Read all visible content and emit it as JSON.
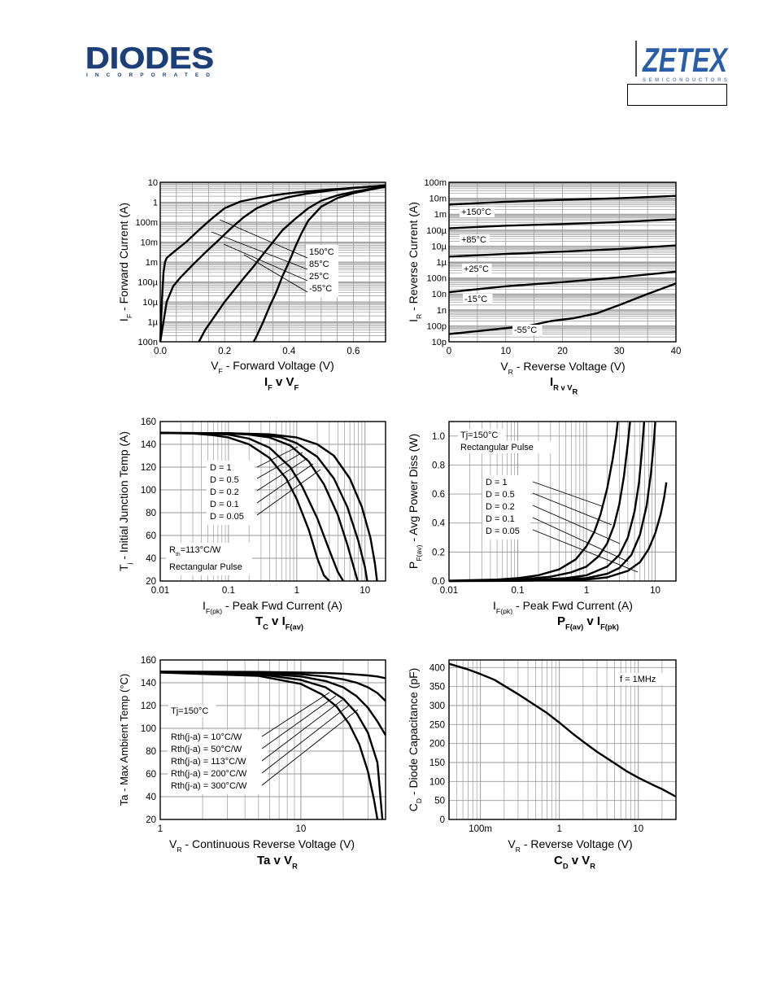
{
  "header": {
    "diodes_logo_text": "DIODES",
    "diodes_logo_sub": "INCORPORATED",
    "zetex_logo_text": "ZETEX",
    "zetex_logo_sub": "SEMICONDUCTORS"
  },
  "colors": {
    "ink": "#000000",
    "grid": "#9a9a9a",
    "background": "#ffffff"
  },
  "chart_data": [
    {
      "id": "if_vf",
      "type": "line",
      "x_scale": "linear",
      "y_scale": "log",
      "xlim": [
        0,
        0.7
      ],
      "ylim": [
        1e-07,
        10
      ],
      "x_ticks": [
        0,
        0.2,
        0.4,
        0.6
      ],
      "x_tick_labels": [
        "0.0",
        "0.2",
        "0.4",
        "0.6"
      ],
      "y_tick_labels": [
        "100n",
        "1µ",
        "10µ",
        "100µ",
        "1m",
        "10m",
        "100m",
        "1",
        "10"
      ],
      "xlabel_main": "V",
      "xlabel_sub": "F",
      "xlabel_rest": " - Forward Voltage (V)",
      "ylabel_main": "I",
      "ylabel_sub": "F",
      "ylabel_rest": " - Forward Current (A)",
      "caption": {
        "a": "I",
        "a_sub": "F",
        "b": " v V",
        "b_sub": "F"
      },
      "legend": [
        "150°C",
        "85°C",
        "25°C",
        "-55°C"
      ],
      "series": [
        {
          "name": "150°C",
          "x": [
            0.0,
            0.005,
            0.01,
            0.015,
            0.02,
            0.04,
            0.08,
            0.12,
            0.16,
            0.2,
            0.25,
            0.3,
            0.35,
            0.4,
            0.45,
            0.5,
            0.55,
            0.6,
            0.65,
            0.7
          ],
          "y": [
            1e-07,
            1e-05,
            0.0003,
            0.001,
            0.0016,
            0.003,
            0.01,
            0.04,
            0.15,
            0.5,
            1.1,
            1.6,
            2.2,
            2.8,
            3.4,
            4.0,
            4.6,
            5.3,
            6.0,
            7.0
          ]
        },
        {
          "name": "85°C",
          "x": [
            0.0,
            0.01,
            0.02,
            0.04,
            0.06,
            0.1,
            0.14,
            0.18,
            0.22,
            0.26,
            0.3,
            0.35,
            0.4,
            0.45,
            0.5,
            0.55,
            0.6,
            0.65,
            0.7
          ],
          "y": [
            1e-07,
            1e-06,
            1e-05,
            6e-05,
            0.00015,
            0.0007,
            0.003,
            0.012,
            0.05,
            0.18,
            0.5,
            1.1,
            1.8,
            2.6,
            3.4,
            4.3,
            5.2,
            6.0,
            7.0
          ]
        },
        {
          "name": "25°C",
          "x": [
            0.12,
            0.14,
            0.17,
            0.2,
            0.23,
            0.26,
            0.29,
            0.32,
            0.35,
            0.38,
            0.42,
            0.46,
            0.5,
            0.55,
            0.6,
            0.65,
            0.7
          ],
          "y": [
            1e-07,
            4e-07,
            2e-06,
            1e-05,
            4e-05,
            0.00016,
            0.0006,
            0.0025,
            0.01,
            0.04,
            0.15,
            0.5,
            1.2,
            2.2,
            3.3,
            4.6,
            6.5
          ]
        },
        {
          "name": "-55°C",
          "x": [
            0.29,
            0.3,
            0.32,
            0.34,
            0.36,
            0.38,
            0.4,
            0.42,
            0.44,
            0.46,
            0.5,
            0.55,
            0.6,
            0.65,
            0.7
          ],
          "y": [
            1e-07,
            2e-07,
            1e-06,
            6e-06,
            3e-05,
            0.0002,
            0.001,
            0.006,
            0.03,
            0.12,
            0.6,
            1.6,
            2.8,
            4.2,
            6.0
          ]
        }
      ]
    },
    {
      "id": "ir_vr",
      "type": "line",
      "x_scale": "linear",
      "y_scale": "log",
      "xlim": [
        0,
        40
      ],
      "ylim": [
        1e-11,
        0.1
      ],
      "x_ticks": [
        0,
        10,
        20,
        30,
        40
      ],
      "x_tick_labels": [
        "0",
        "10",
        "20",
        "30",
        "40"
      ],
      "y_tick_labels": [
        "10p",
        "100p",
        "1n",
        "10n",
        "100n",
        "1µ",
        "10µ",
        "100µ",
        "1m",
        "10m",
        "100m"
      ],
      "xlabel_main": "V",
      "xlabel_sub": "R",
      "xlabel_rest": " - Reverse Voltage (V)",
      "ylabel_main": "I",
      "ylabel_sub": "R",
      "ylabel_rest": " - Reverse Current (A)",
      "caption": {
        "a": "I",
        "a_sub": "R v V",
        "b": "",
        "b_sub": "R"
      },
      "series": [
        {
          "name": "+150°C",
          "x": [
            0,
            10,
            20,
            30,
            40
          ],
          "y": [
            0.004,
            0.006,
            0.008,
            0.01,
            0.014
          ]
        },
        {
          "name": "+85°C",
          "x": [
            0,
            10,
            20,
            30,
            40
          ],
          "y": [
            0.00013,
            0.00019,
            0.00024,
            0.00032,
            0.00048
          ]
        },
        {
          "name": "+25°C",
          "x": [
            0,
            10,
            20,
            30,
            40
          ],
          "y": [
            2.2e-06,
            3.2e-06,
            4.5e-06,
            6.5e-06,
            1.1e-05
          ]
        },
        {
          "name": "-15°C",
          "x": [
            0,
            10,
            20,
            30,
            40
          ],
          "y": [
            1.3e-08,
            3e-08,
            5.5e-08,
            1.1e-07,
            2.5e-07
          ]
        },
        {
          "name": "-55°C",
          "x": [
            0,
            7,
            14,
            18,
            22,
            26,
            30,
            35,
            40
          ],
          "y": [
            3e-11,
            5.5e-11,
            1e-10,
            2e-10,
            3e-10,
            6e-10,
            2e-09,
            1e-08,
            4.5e-08
          ]
        }
      ]
    },
    {
      "id": "tj_if",
      "type": "line",
      "x_scale": "log",
      "y_scale": "linear",
      "xlim": [
        0.01,
        20
      ],
      "ylim": [
        20,
        160
      ],
      "x_tick_labels": [
        "0.01",
        "0.1",
        "1",
        "10"
      ],
      "y_ticks": [
        20,
        40,
        60,
        80,
        100,
        120,
        140,
        160
      ],
      "xlabel_main": "I",
      "xlabel_sub": "F(pk)",
      "xlabel_rest": " - Peak Fwd Current (A)",
      "ylabel_main": "T",
      "ylabel_sub": "j",
      "ylabel_rest": " - Initial Junction Temp (A)",
      "caption": {
        "a": "T",
        "a_sub": "C",
        "b": " v I",
        "b_sub": "F(av)"
      },
      "legend": [
        "D = 1",
        "D = 0.5",
        "D = 0.2",
        "D = 0.1",
        "D = 0.05"
      ],
      "notes": [
        "R",
        "th",
        "=113°C/W",
        "Rectangular Pulse"
      ],
      "series": [
        {
          "name": "D = 1",
          "x": [
            0.01,
            0.03,
            0.06,
            0.1,
            0.2,
            0.4,
            0.7,
            1.0,
            1.5,
            2.0,
            2.5,
            3.0
          ],
          "y": [
            150,
            149.5,
            148,
            146,
            140,
            128,
            110,
            92,
            65,
            40,
            25,
            20
          ]
        },
        {
          "name": "D = 0.5",
          "x": [
            0.01,
            0.05,
            0.1,
            0.2,
            0.4,
            0.8,
            1.2,
            2.0,
            3.0,
            4.0,
            4.8
          ],
          "y": [
            150,
            149.5,
            148.5,
            145,
            137,
            120,
            103,
            75,
            47,
            28,
            20
          ]
        },
        {
          "name": "D = 0.2",
          "x": [
            0.01,
            0.1,
            0.2,
            0.4,
            0.8,
            1.5,
            2.5,
            4.0,
            5.5,
            7.0,
            7.8
          ],
          "y": [
            150,
            149.5,
            148.5,
            146,
            139,
            125,
            105,
            78,
            52,
            30,
            20
          ]
        },
        {
          "name": "D = 0.1",
          "x": [
            0.01,
            0.1,
            0.3,
            0.6,
            1.0,
            2.0,
            3.5,
            5.5,
            8.0,
            10.0,
            10.8
          ],
          "y": [
            150,
            149.8,
            148.5,
            146,
            141,
            129,
            110,
            85,
            55,
            32,
            20
          ]
        },
        {
          "name": "D = 0.05",
          "x": [
            0.01,
            0.1,
            0.4,
            1.0,
            2.0,
            3.5,
            6.0,
            9.0,
            12.0,
            14.0,
            15.0
          ],
          "y": [
            150,
            149.8,
            148.8,
            146,
            140,
            130,
            110,
            85,
            58,
            35,
            20
          ]
        }
      ]
    },
    {
      "id": "pf_if",
      "type": "line",
      "x_scale": "log",
      "y_scale": "linear",
      "xlim": [
        0.01,
        20
      ],
      "ylim": [
        0,
        1.1
      ],
      "x_tick_labels": [
        "0.01",
        "0.1",
        "1",
        "10"
      ],
      "y_ticks": [
        0,
        0.2,
        0.4,
        0.6,
        0.8,
        1.0
      ],
      "y_tick_labels": [
        "0.0",
        "0.2",
        "0.4",
        "0.6",
        "0.8",
        "1.0"
      ],
      "xlabel_main": "I",
      "xlabel_sub": "F(pk)",
      "xlabel_rest": " - Peak Fwd Current (A)",
      "ylabel_main": "P",
      "ylabel_sub": "F(av)",
      "ylabel_rest": " - Avg Power Diss (W)",
      "caption": {
        "a": "P",
        "a_sub": "F(av)",
        "b": " v I",
        "b_sub": "F(pk)"
      },
      "legend": [
        "D = 1",
        "D = 0.5",
        "D = 0.2",
        "D = 0.1",
        "D = 0.05"
      ],
      "notes": [
        "Tj=150°C",
        "Rectangular Pulse"
      ],
      "series": [
        {
          "name": "D = 1",
          "x": [
            0.01,
            0.05,
            0.1,
            0.2,
            0.4,
            0.7,
            1.0,
            1.3,
            1.6,
            2.0,
            2.4,
            2.7,
            2.85
          ],
          "y": [
            0.002,
            0.01,
            0.02,
            0.04,
            0.08,
            0.15,
            0.24,
            0.34,
            0.46,
            0.64,
            0.84,
            1.0,
            1.1
          ]
        },
        {
          "name": "D = 0.5",
          "x": [
            0.01,
            0.1,
            0.3,
            0.6,
            1.0,
            1.5,
            2.0,
            2.5,
            3.0,
            3.5,
            4.0,
            4.3
          ],
          "y": [
            0.001,
            0.01,
            0.03,
            0.06,
            0.1,
            0.17,
            0.26,
            0.38,
            0.53,
            0.72,
            0.95,
            1.1
          ]
        },
        {
          "name": "D = 0.2",
          "x": [
            0.01,
            0.1,
            0.5,
            1.0,
            2.0,
            3.0,
            4.0,
            5.0,
            5.8,
            6.4,
            6.9
          ],
          "y": [
            0.0005,
            0.004,
            0.02,
            0.04,
            0.1,
            0.18,
            0.3,
            0.48,
            0.68,
            0.9,
            1.1
          ]
        },
        {
          "name": "D = 0.1",
          "x": [
            0.01,
            0.1,
            1.0,
            2.0,
            3.0,
            4.5,
            6.0,
            7.5,
            8.7,
            9.5,
            10.0
          ],
          "y": [
            0.0003,
            0.002,
            0.02,
            0.05,
            0.09,
            0.18,
            0.32,
            0.52,
            0.75,
            0.95,
            1.1
          ]
        },
        {
          "name": "D = 0.05",
          "x": [
            0.01,
            0.1,
            1.0,
            2.0,
            4.0,
            6.0,
            8.0,
            10.0,
            12.0,
            13.5,
            14.5
          ],
          "y": [
            0.0002,
            0.001,
            0.01,
            0.025,
            0.07,
            0.13,
            0.22,
            0.33,
            0.46,
            0.58,
            0.68
          ]
        }
      ]
    },
    {
      "id": "ta_vr",
      "type": "line",
      "x_scale": "log",
      "y_scale": "linear",
      "xlim": [
        1,
        40
      ],
      "ylim": [
        20,
        160
      ],
      "x_tick_labels": [
        "1",
        "10"
      ],
      "y_ticks": [
        20,
        40,
        60,
        80,
        100,
        120,
        140,
        160
      ],
      "xlabel_main": "V",
      "xlabel_sub": "R",
      "xlabel_rest": " - Continuous Reverse Voltage (V)",
      "ylabel_main": "Ta - Max Ambient Temp (°C)",
      "ylabel_sub": "",
      "ylabel_rest": "",
      "caption": {
        "a": "Ta v V",
        "a_sub": "R",
        "b": "",
        "b_sub": ""
      },
      "legend": [
        "Rth(j-a) = 10°C/W",
        "Rth(j-a) = 50°C/W",
        "Rth(j-a) = 113°C/W",
        "Rth(j-a) = 200°C/W",
        "Rth(j-a) = 300°C/W"
      ],
      "notes": [
        "Tj=150°C"
      ],
      "series": [
        {
          "name": "Rth(j-a) = 10°C/W",
          "x": [
            1,
            5,
            10,
            15,
            20,
            25,
            30,
            35,
            40
          ],
          "y": [
            149.8,
            149.5,
            149,
            148.5,
            148,
            147.2,
            146.4,
            145.5,
            144
          ]
        },
        {
          "name": "Rth(j-a) = 50°C/W",
          "x": [
            1,
            5,
            10,
            15,
            20,
            25,
            30,
            35,
            40
          ],
          "y": [
            149.6,
            149,
            147.5,
            145.5,
            143,
            140,
            136,
            131,
            124
          ]
        },
        {
          "name": "Rth(j-a) = 113°C/W",
          "x": [
            1,
            5,
            10,
            15,
            20,
            25,
            30,
            35,
            40
          ],
          "y": [
            149.5,
            148.2,
            145.5,
            141.5,
            136,
            128,
            118,
            106,
            94
          ]
        },
        {
          "name": "Rth(j-a) = 200°C/W",
          "x": [
            1,
            5,
            10,
            15,
            20,
            25,
            30,
            35,
            38
          ],
          "y": [
            149.3,
            147.5,
            142.5,
            136,
            126,
            113,
            96,
            70,
            20
          ]
        },
        {
          "name": "Rth(j-a) = 300°C/W",
          "x": [
            1,
            5,
            10,
            14,
            18,
            22,
            26,
            30,
            33,
            35
          ],
          "y": [
            149,
            146,
            139,
            130,
            119,
            104,
            86,
            62,
            38,
            20
          ]
        }
      ]
    },
    {
      "id": "cd_vr",
      "type": "line",
      "x_scale": "log",
      "y_scale": "linear",
      "xlim": [
        0.04,
        30
      ],
      "ylim": [
        0,
        420
      ],
      "x_tick_labels": [
        "100m",
        "1",
        "10"
      ],
      "y_ticks": [
        0,
        50,
        100,
        150,
        200,
        250,
        300,
        350,
        400
      ],
      "xlabel_main": "V",
      "xlabel_sub": "R",
      "xlabel_rest": " - Reverse Voltage (V)",
      "ylabel_main": "C",
      "ylabel_sub": "D",
      "ylabel_rest": " - Diode Capacitance (pF)",
      "caption": {
        "a": "C",
        "a_sub": "D",
        "b": " v V",
        "b_sub": "R"
      },
      "notes": [
        "f = 1MHz"
      ],
      "series": [
        {
          "name": "",
          "x": [
            0.04,
            0.07,
            0.1,
            0.15,
            0.2,
            0.3,
            0.5,
            0.7,
            1.0,
            1.5,
            2.0,
            3.0,
            5.0,
            7.0,
            10.0,
            15.0,
            20.0,
            30.0
          ],
          "y": [
            410,
            395,
            383,
            368,
            352,
            330,
            300,
            280,
            255,
            225,
            205,
            178,
            148,
            128,
            110,
            92,
            80,
            60
          ]
        }
      ]
    }
  ]
}
